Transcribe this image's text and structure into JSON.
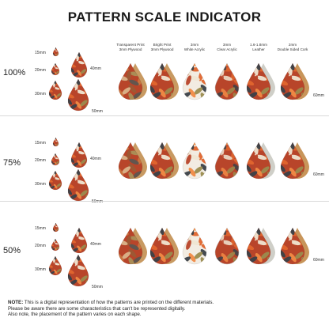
{
  "title": "PATTERN SCALE INDICATOR",
  "columns": [
    {
      "line1": "Transparent Print",
      "line2": "3mm Plywood"
    },
    {
      "line1": "Bright Print",
      "line2": "3mm Plywood"
    },
    {
      "line1": "3mm",
      "line2": "White Acrylic"
    },
    {
      "line1": "3mm",
      "line2": "Clear Acrylic"
    },
    {
      "line1": "1.6-1.8mm",
      "line2": "Leather"
    },
    {
      "line1": "2mm",
      "line2": "Double Sided Cork"
    }
  ],
  "rows": [
    {
      "scale": "100%"
    },
    {
      "scale": "75%"
    },
    {
      "scale": "50%"
    }
  ],
  "size_labels": {
    "s15": "15mm",
    "s20": "20mm",
    "s30": "30mm",
    "s40": "40mm",
    "s50": "50mm",
    "s60": "60mm"
  },
  "note": {
    "label": "NOTE:",
    "line1": "This is a digital representation of how the patterns are printed on the different materials.",
    "line2": "Please be aware there are some characteristics that can't be represented digitally.",
    "line3": "Also note, the placement of the pattern varies on each shape."
  },
  "colors": {
    "orange": "#e0662e",
    "rust": "#b8452a",
    "dark_slate": "#3a4148",
    "cream": "#efe6d2",
    "olive": "#9a8c4e",
    "plywood_edge": "#c89a62",
    "cork": "#c8955a",
    "leather": "#cfcfc8"
  }
}
